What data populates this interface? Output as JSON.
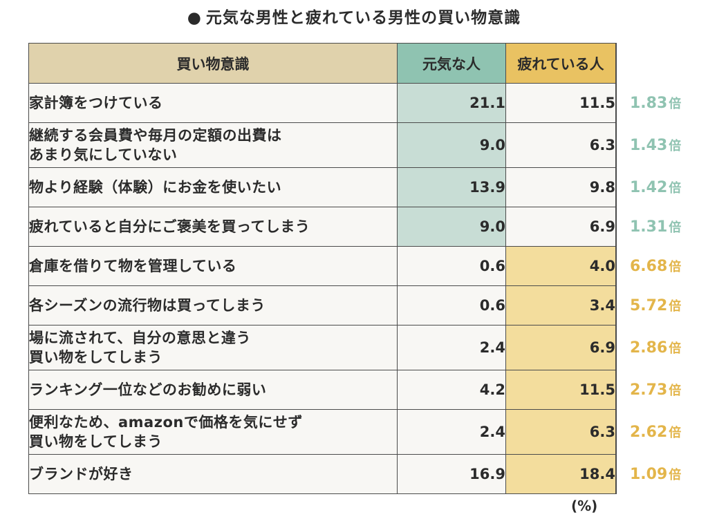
{
  "title": "元気な男性と疲れている男性の買い物意識",
  "title_bullet": "●",
  "chart_data": {
    "type": "table",
    "title": "元気な男性と疲れている男性の買い物意識",
    "columns": [
      "買い物意識",
      "元気な人",
      "疲れている人"
    ],
    "unit": "(%)",
    "ratio_suffix": "倍",
    "colors": {
      "header_label": "#e0d2ac",
      "genki": "#8fc3b1",
      "tired": "#e9c262",
      "genki_highlight": "#c8ddd5",
      "tired_highlight": "#f3dd9d",
      "ratio_genki_text": "#8fc3b1",
      "ratio_tired_text": "#e3b54a"
    },
    "rows": [
      {
        "label": [
          "家計簿をつけている"
        ],
        "genki": "21.1",
        "tired": "11.5",
        "ratio": "1.83",
        "higher": "genki"
      },
      {
        "label": [
          "継続する会員費や毎月の定額の出費は",
          "あまり気にしていない"
        ],
        "genki": "9.0",
        "tired": "6.3",
        "ratio": "1.43",
        "higher": "genki"
      },
      {
        "label": [
          "物より経験（体験）にお金を使いたい"
        ],
        "genki": "13.9",
        "tired": "9.8",
        "ratio": "1.42",
        "higher": "genki"
      },
      {
        "label": [
          "疲れていると自分にご褒美を買ってしまう"
        ],
        "genki": "9.0",
        "tired": "6.9",
        "ratio": "1.31",
        "higher": "genki"
      },
      {
        "label": [
          "倉庫を借りて物を管理している"
        ],
        "genki": "0.6",
        "tired": "4.0",
        "ratio": "6.68",
        "higher": "tired"
      },
      {
        "label": [
          "各シーズンの流行物は買ってしまう"
        ],
        "genki": "0.6",
        "tired": "3.4",
        "ratio": "5.72",
        "higher": "tired"
      },
      {
        "label": [
          "場に流されて、自分の意思と違う",
          "買い物をしてしまう"
        ],
        "genki": "2.4",
        "tired": "6.9",
        "ratio": "2.86",
        "higher": "tired"
      },
      {
        "label": [
          "ランキング一位などのお勧めに弱い"
        ],
        "genki": "4.2",
        "tired": "11.5",
        "ratio": "2.73",
        "higher": "tired"
      },
      {
        "label": [
          "便利なため、amazonで価格を気にせず",
          "買い物をしてしまう"
        ],
        "genki": "2.4",
        "tired": "6.3",
        "ratio": "2.62",
        "higher": "tired"
      },
      {
        "label": [
          "ブランドが好き"
        ],
        "genki": "16.9",
        "tired": "18.4",
        "ratio": "1.09",
        "higher": "tired"
      }
    ]
  }
}
